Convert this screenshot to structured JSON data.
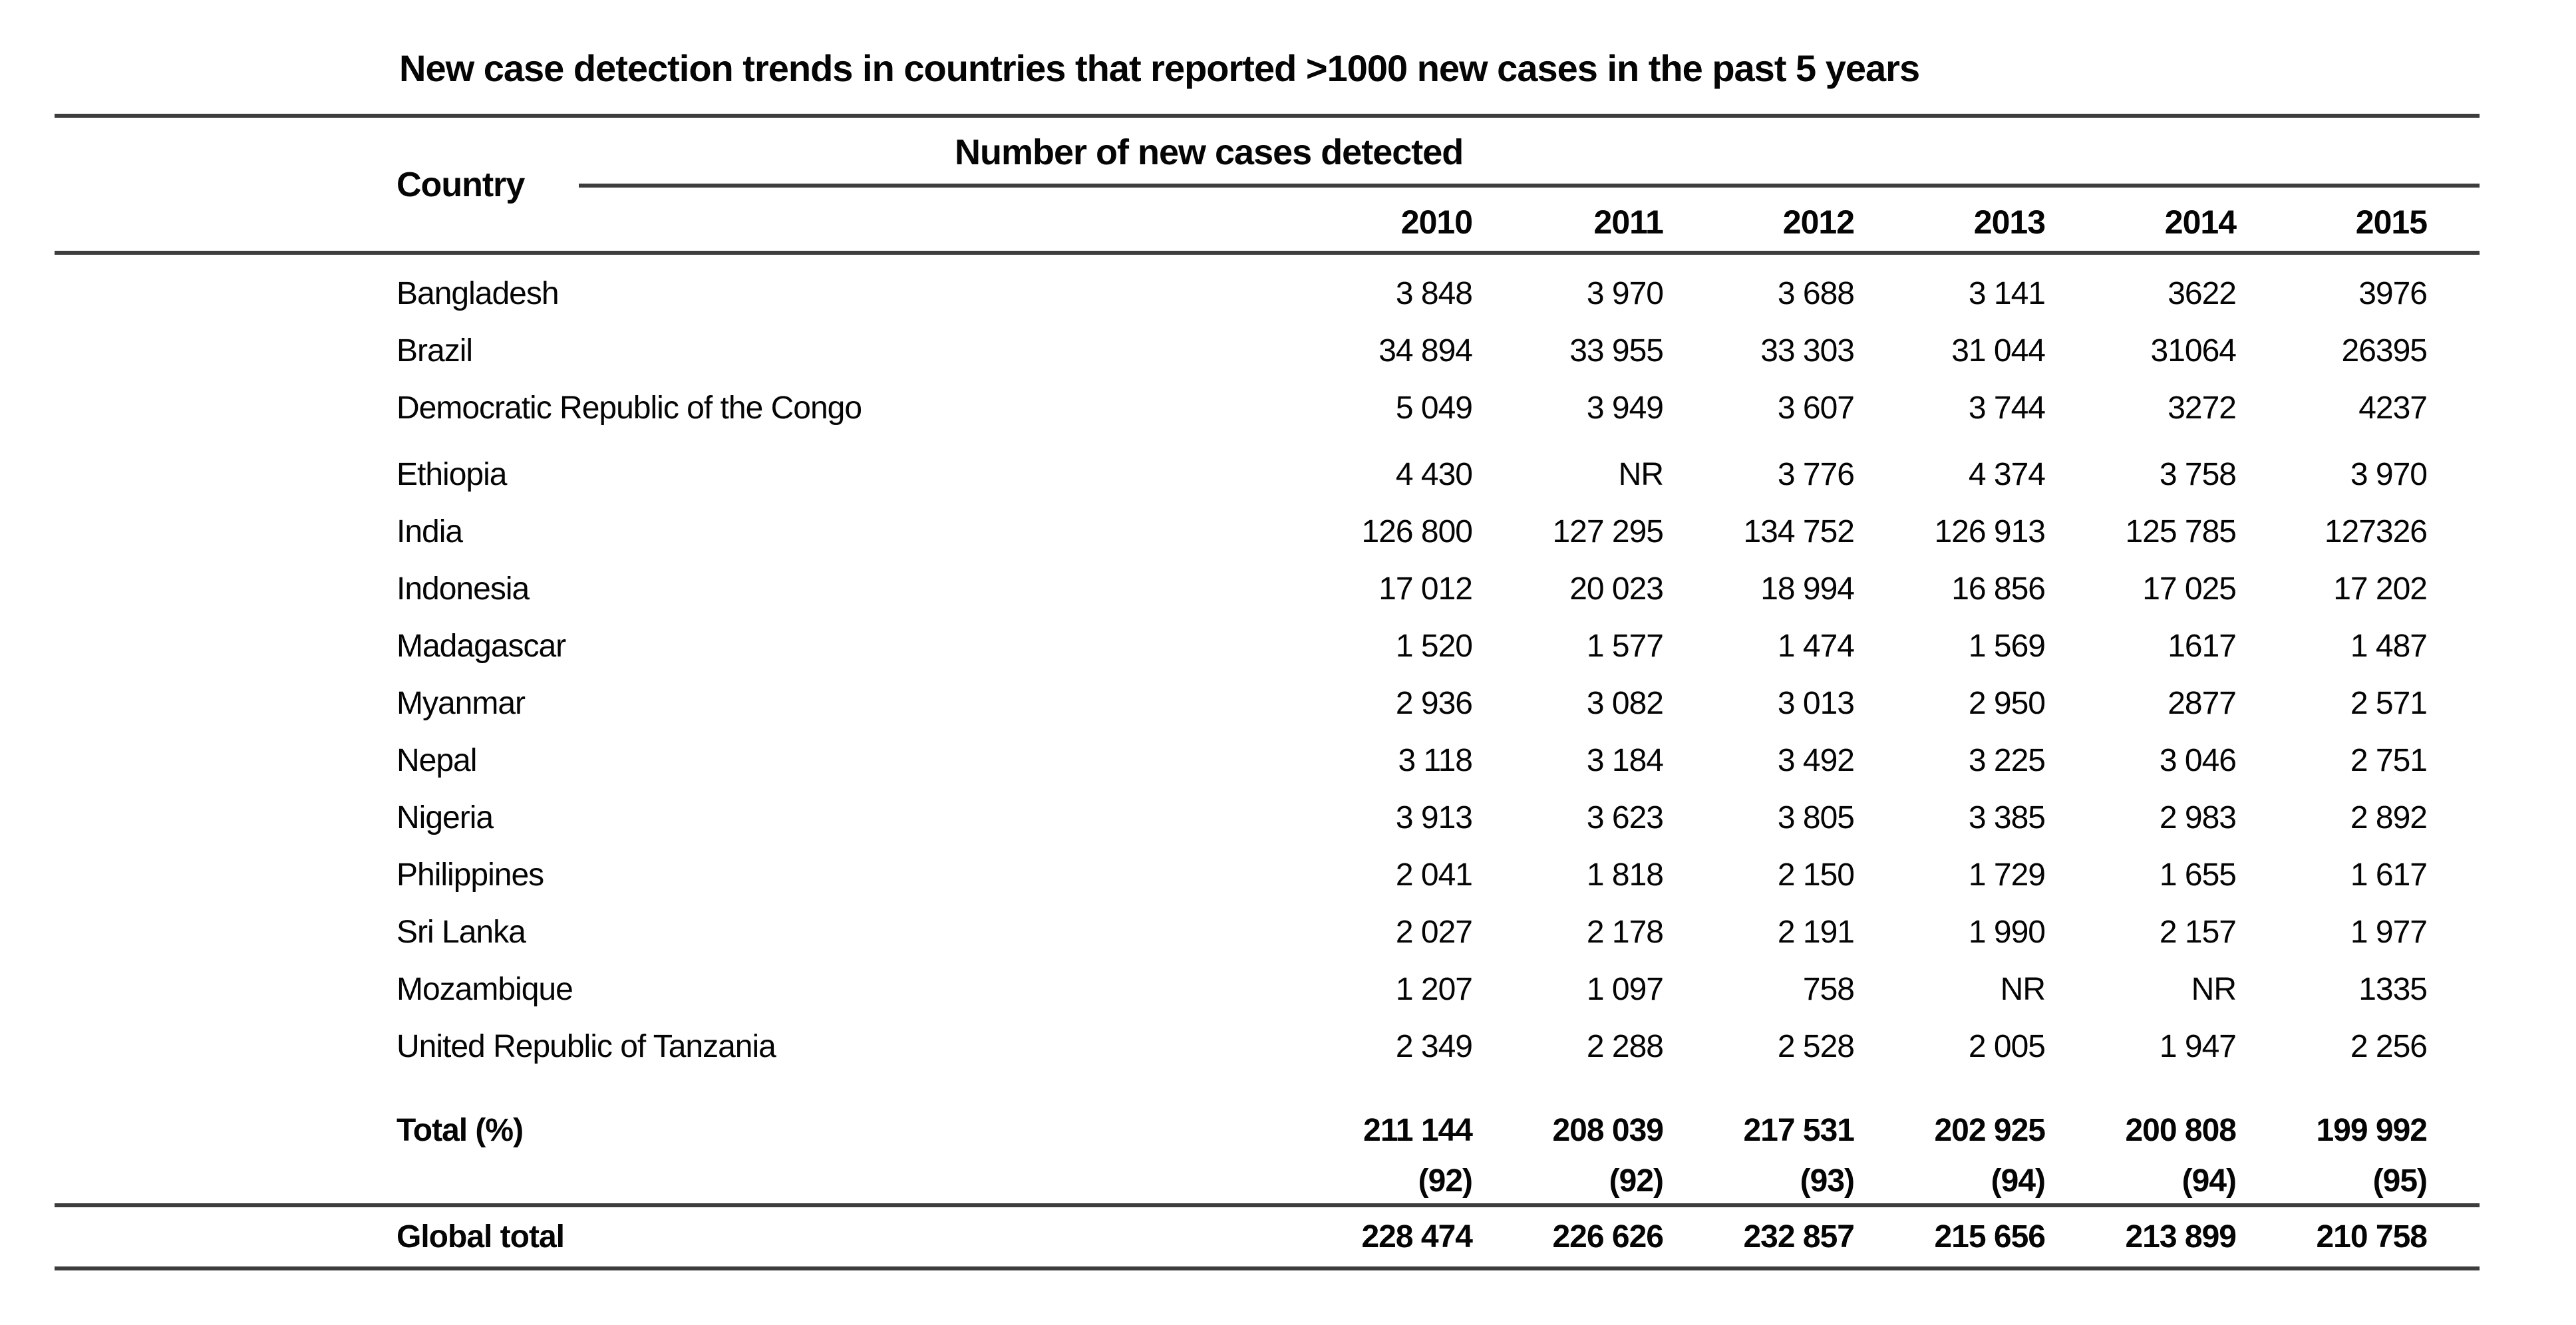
{
  "title": "New case detection trends in countries that reported >1000 new cases in the past 5 years",
  "table": {
    "country_header": "Country",
    "group_header": "Number of new cases detected",
    "years": [
      "2010",
      "2011",
      "2012",
      "2013",
      "2014",
      "2015"
    ],
    "not_reported_label": "NR",
    "rows": [
      {
        "country": "Bangladesh",
        "values": [
          "3 848",
          "3 970",
          "3 688",
          "3 141",
          "3622",
          "3976"
        ]
      },
      {
        "country": "Brazil",
        "values": [
          "34 894",
          "33 955",
          "33 303",
          "31 044",
          "31064",
          "26395"
        ]
      },
      {
        "country": "Democratic Republic of the Congo",
        "values": [
          "5 049",
          "3 949",
          "3 607",
          "3 744",
          "3272",
          "4237"
        ]
      },
      {
        "country": "Ethiopia",
        "values": [
          "4 430",
          "NR",
          "3 776",
          "4 374",
          "3 758",
          "3 970"
        ]
      },
      {
        "country": "India",
        "values": [
          "126 800",
          "127 295",
          "134 752",
          "126 913",
          "125 785",
          "127326"
        ]
      },
      {
        "country": "Indonesia",
        "values": [
          "17 012",
          "20 023",
          "18 994",
          "16 856",
          "17 025",
          "17 202"
        ]
      },
      {
        "country": "Madagascar",
        "values": [
          "1 520",
          "1 577",
          "1 474",
          "1 569",
          "1617",
          "1 487"
        ]
      },
      {
        "country": "Myanmar",
        "values": [
          "2 936",
          "3 082",
          "3 013",
          "2 950",
          "2877",
          "2 571"
        ]
      },
      {
        "country": "Nepal",
        "values": [
          "3 118",
          "3 184",
          "3 492",
          "3 225",
          "3 046",
          "2 751"
        ]
      },
      {
        "country": "Nigeria",
        "values": [
          "3 913",
          "3 623",
          "3 805",
          "3 385",
          "2 983",
          "2 892"
        ]
      },
      {
        "country": "Philippines",
        "values": [
          "2 041",
          "1 818",
          "2 150",
          "1 729",
          "1 655",
          "1 617"
        ]
      },
      {
        "country": "Sri Lanka",
        "values": [
          "2 027",
          "2 178",
          "2 191",
          "1 990",
          "2 157",
          "1 977"
        ]
      },
      {
        "country": "Mozambique",
        "values": [
          "1 207",
          "1 097",
          "758",
          "NR",
          "NR",
          "1335"
        ]
      },
      {
        "country": "United Republic of Tanzania",
        "values": [
          "2 349",
          "2 288",
          "2 528",
          "2 005",
          "1 947",
          "2 256"
        ]
      }
    ],
    "total_row": {
      "label": "Total (%)",
      "values": [
        "211 144",
        "208 039",
        "217 531",
        "202 925",
        "200 808",
        "199 992"
      ]
    },
    "total_pct_row": {
      "values": [
        "(92)",
        "(92)",
        "(93)",
        "(94)",
        "(94)",
        "(95)"
      ]
    },
    "global_row": {
      "label": "Global total",
      "values": [
        "228 474",
        "226 626",
        "232 857",
        "215 656",
        "213 899",
        "210 758"
      ]
    }
  },
  "colors": {
    "background": "#ffffff",
    "text": "#050505",
    "rule": "#3d3d3d"
  }
}
